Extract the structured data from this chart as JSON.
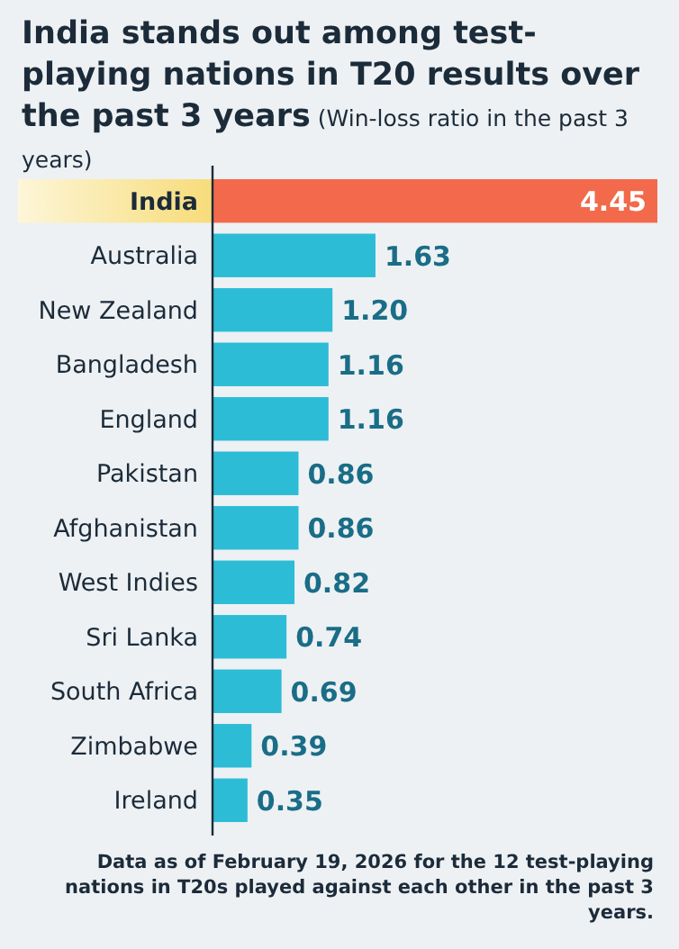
{
  "chart_data": {
    "type": "bar",
    "orientation": "horizontal",
    "title": "India stands out among test-playing nations in T20 results over the past 3 years",
    "subtitle": "(Win-loss ratio in the past 3 years)",
    "categories": [
      "India",
      "Australia",
      "New Zealand",
      "Bangladesh",
      "England",
      "Pakistan",
      "Afghanistan",
      "West Indies",
      "Sri Lanka",
      "South Africa",
      "Zimbabwe",
      "Ireland"
    ],
    "values": [
      4.45,
      1.63,
      1.2,
      1.16,
      1.16,
      0.86,
      0.86,
      0.82,
      0.74,
      0.69,
      0.39,
      0.35
    ],
    "value_labels": [
      "4.45",
      "1.63",
      "1.20",
      "1.16",
      "1.16",
      "0.86",
      "0.86",
      "0.82",
      "0.74",
      "0.69",
      "0.39",
      "0.35"
    ],
    "colors": [
      "#f26a4b",
      "#2cbcd6",
      "#2cbcd6",
      "#2cbcd6",
      "#2cbcd6",
      "#2cbcd6",
      "#2cbcd6",
      "#2cbcd6",
      "#2cbcd6",
      "#2cbcd6",
      "#2cbcd6",
      "#2cbcd6"
    ],
    "annotations": [
      "Data as of February 19, 2026 for the 12 test-playing nations in T20s played against each other in the past 3 years."
    ]
  }
}
